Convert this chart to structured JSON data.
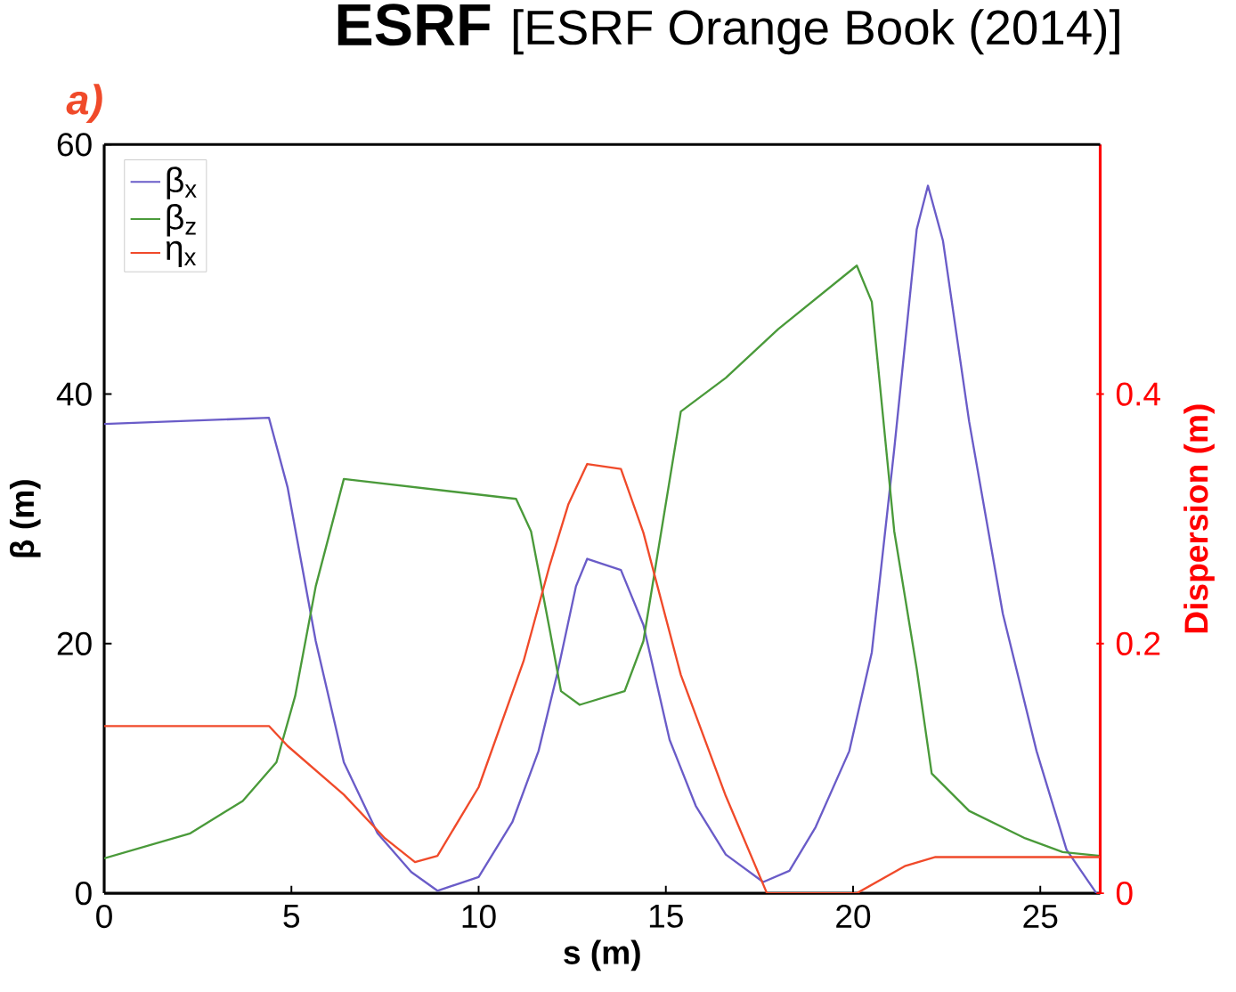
{
  "chart_data": {
    "type": "line",
    "title": "ESRF",
    "subtitle": "[ESRF Orange Book (2014)]",
    "annotations": [
      "a)"
    ],
    "xlabel": "s (m)",
    "ylabel": "β (m)",
    "y2label": "Dispersion (m)",
    "xlim": [
      0,
      26.6
    ],
    "xticks": [
      0,
      5,
      10,
      15,
      20,
      25
    ],
    "ylim": [
      0,
      60
    ],
    "yticks": [
      0,
      20,
      40,
      60
    ],
    "y2lim": [
      0,
      0.6
    ],
    "y2ticks": [
      0,
      0.2,
      0.4
    ],
    "legend": "top left",
    "grid": false,
    "series": [
      {
        "name": "β$_{x}$",
        "color": "#6a5cc8",
        "x": [
          0,
          4.4,
          4.9,
          5.65,
          6.4,
          7.3,
          8.2,
          8.9,
          10.0,
          10.9,
          11.6,
          12.1,
          12.6,
          12.9,
          13.8,
          14.4,
          15.1,
          15.8,
          16.6,
          17.6,
          18.3,
          19.0,
          19.9,
          20.5,
          21.1,
          21.7,
          22.0,
          22.4,
          23.1,
          24.0,
          24.9,
          25.7,
          26.5
        ],
        "values": [
          37.6,
          38.1,
          32.5,
          20.2,
          10.5,
          4.8,
          1.7,
          0.2,
          1.3,
          5.7,
          11.4,
          17.6,
          24.6,
          26.8,
          25.9,
          21.5,
          12.3,
          7.0,
          3.1,
          0.9,
          1.8,
          5.3,
          11.4,
          19.3,
          35.6,
          53.2,
          56.7,
          52.3,
          37.8,
          22.4,
          11.4,
          3.5,
          0
        ]
      },
      {
        "name": "β$_{z}$",
        "color": "#4a9a3a",
        "x": [
          0,
          2.3,
          3.7,
          4.6,
          5.1,
          5.65,
          6.4,
          11.0,
          11.4,
          11.9,
          12.2,
          12.7,
          13.9,
          14.4,
          15.4,
          16.6,
          18.0,
          20.1,
          20.5,
          21.1,
          21.7,
          22.1,
          23.1,
          24.6,
          25.6,
          26.6
        ],
        "values": [
          2.8,
          4.8,
          7.4,
          10.5,
          15.8,
          24.6,
          33.2,
          31.6,
          29.0,
          21.1,
          16.2,
          15.1,
          16.2,
          20.2,
          38.6,
          41.3,
          45.2,
          50.3,
          47.4,
          29.0,
          18.0,
          9.6,
          6.6,
          4.4,
          3.3,
          3.0
        ]
      },
      {
        "name": "η$_{x}$",
        "color": "#f04a2a",
        "axis": "y2",
        "x": [
          0,
          4.4,
          4.9,
          6.4,
          7.5,
          8.3,
          8.9,
          10.0,
          11.2,
          11.9,
          12.4,
          12.9,
          13.8,
          14.4,
          15.4,
          16.6,
          17.7,
          20.1,
          21.4,
          22.2,
          26.6
        ],
        "values": [
          0.134,
          0.134,
          0.118,
          0.079,
          0.044,
          0.025,
          0.03,
          0.085,
          0.186,
          0.263,
          0.312,
          0.344,
          0.34,
          0.289,
          0.175,
          0.078,
          0,
          0,
          0.022,
          0.029,
          0.029
        ]
      }
    ]
  }
}
